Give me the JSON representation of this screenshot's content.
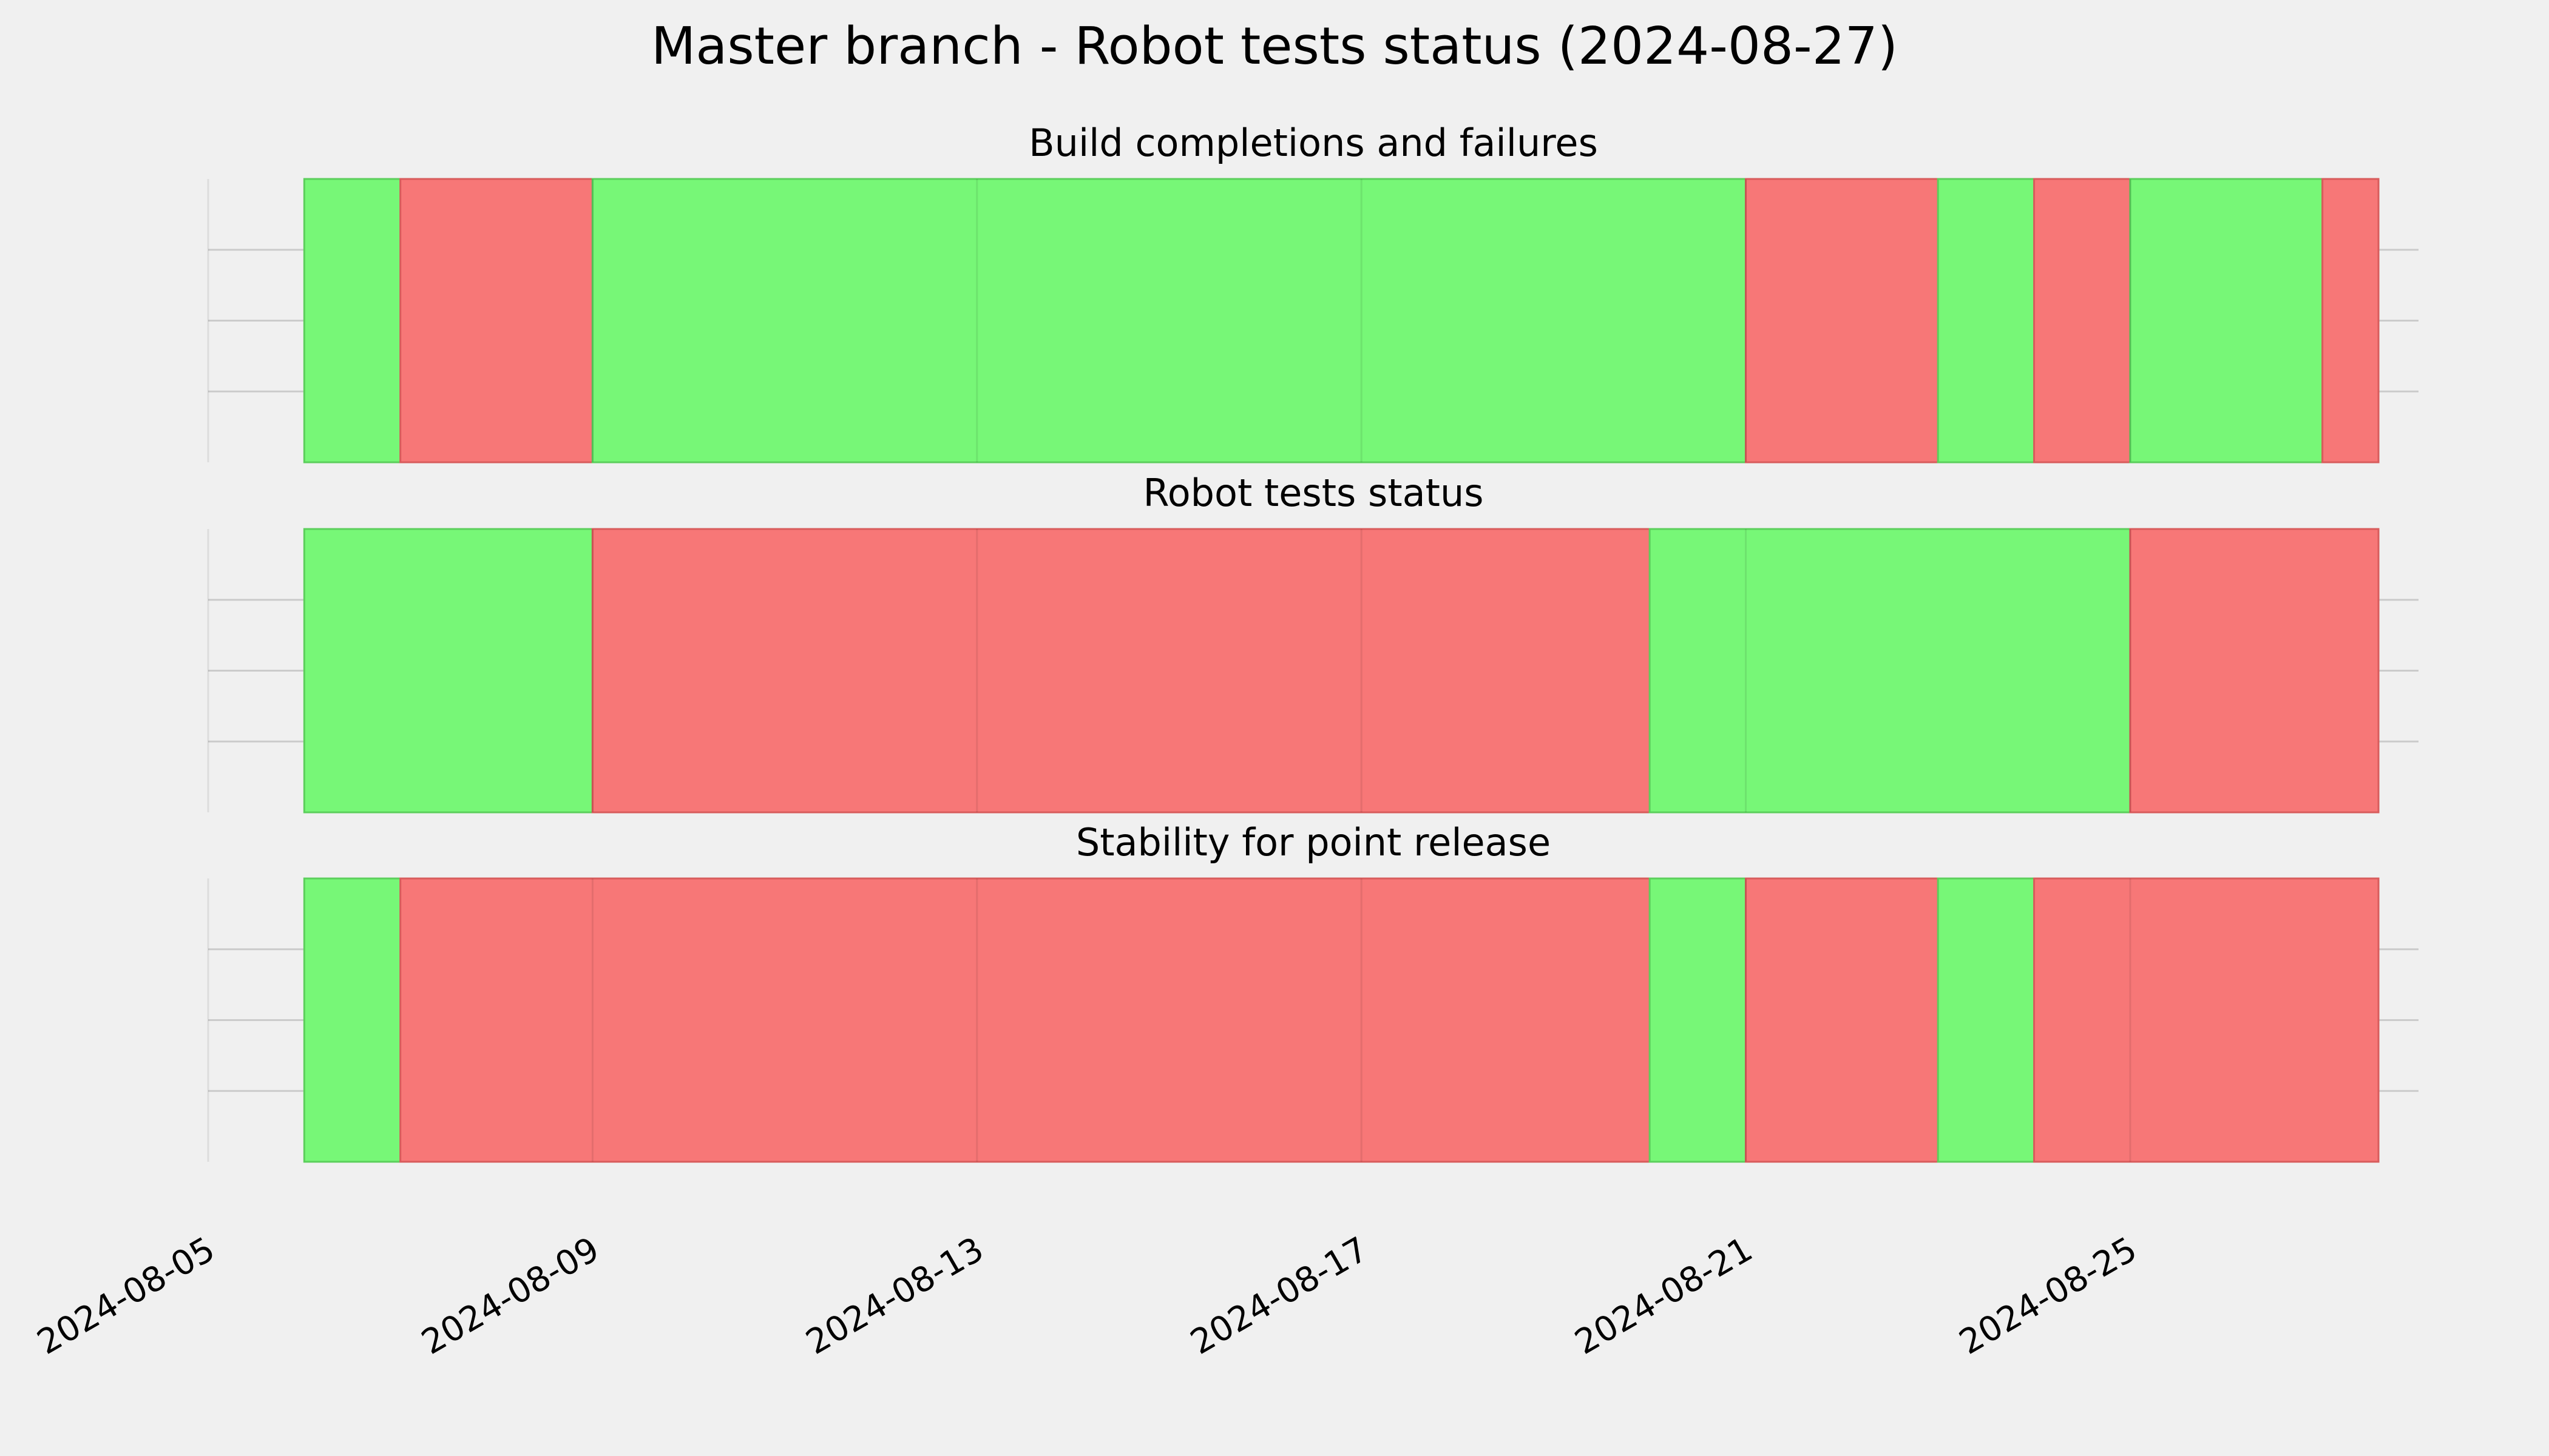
{
  "chart_data": {
    "type": "timeline",
    "title": "Master branch - Robot tests status (2024-08-27)",
    "x_axis": {
      "type": "date",
      "range": [
        "2024-08-05",
        "2024-08-28"
      ],
      "tick_labels": [
        "2024-08-05",
        "2024-08-09",
        "2024-08-13",
        "2024-08-17",
        "2024-08-21",
        "2024-08-25"
      ],
      "tick_values": [
        "2024-08-05",
        "2024-08-09",
        "2024-08-13",
        "2024-08-17",
        "2024-08-21",
        "2024-08-25"
      ],
      "vertical_grid": true
    },
    "y_axis": {
      "tick_labels": [],
      "horizontal_grid": true
    },
    "status_colors": {
      "pass": "#77f777",
      "fail": "#f77777"
    },
    "panels": [
      {
        "title": "Build completions and failures",
        "segments": [
          {
            "start": "2024-08-06",
            "end": "2024-08-07",
            "status": "pass"
          },
          {
            "start": "2024-08-07",
            "end": "2024-08-09",
            "status": "fail"
          },
          {
            "start": "2024-08-09",
            "end": "2024-08-21",
            "status": "pass"
          },
          {
            "start": "2024-08-21",
            "end": "2024-08-23",
            "status": "fail"
          },
          {
            "start": "2024-08-23",
            "end": "2024-08-24",
            "status": "pass"
          },
          {
            "start": "2024-08-24",
            "end": "2024-08-25",
            "status": "fail"
          },
          {
            "start": "2024-08-25",
            "end": "2024-08-27",
            "status": "pass"
          },
          {
            "start": "2024-08-27",
            "end": "2024-08-27T14:00",
            "status": "fail"
          }
        ]
      },
      {
        "title": "Robot tests status",
        "segments": [
          {
            "start": "2024-08-06",
            "end": "2024-08-09",
            "status": "pass"
          },
          {
            "start": "2024-08-09",
            "end": "2024-08-20",
            "status": "fail"
          },
          {
            "start": "2024-08-20",
            "end": "2024-08-25",
            "status": "pass"
          },
          {
            "start": "2024-08-25",
            "end": "2024-08-27T14:00",
            "status": "fail"
          }
        ]
      },
      {
        "title": "Stability for point release",
        "segments": [
          {
            "start": "2024-08-06",
            "end": "2024-08-07",
            "status": "pass"
          },
          {
            "start": "2024-08-07",
            "end": "2024-08-20",
            "status": "fail"
          },
          {
            "start": "2024-08-20",
            "end": "2024-08-21",
            "status": "pass"
          },
          {
            "start": "2024-08-21",
            "end": "2024-08-23",
            "status": "fail"
          },
          {
            "start": "2024-08-23",
            "end": "2024-08-24",
            "status": "pass"
          },
          {
            "start": "2024-08-24",
            "end": "2024-08-27T14:00",
            "status": "fail"
          }
        ]
      }
    ]
  }
}
